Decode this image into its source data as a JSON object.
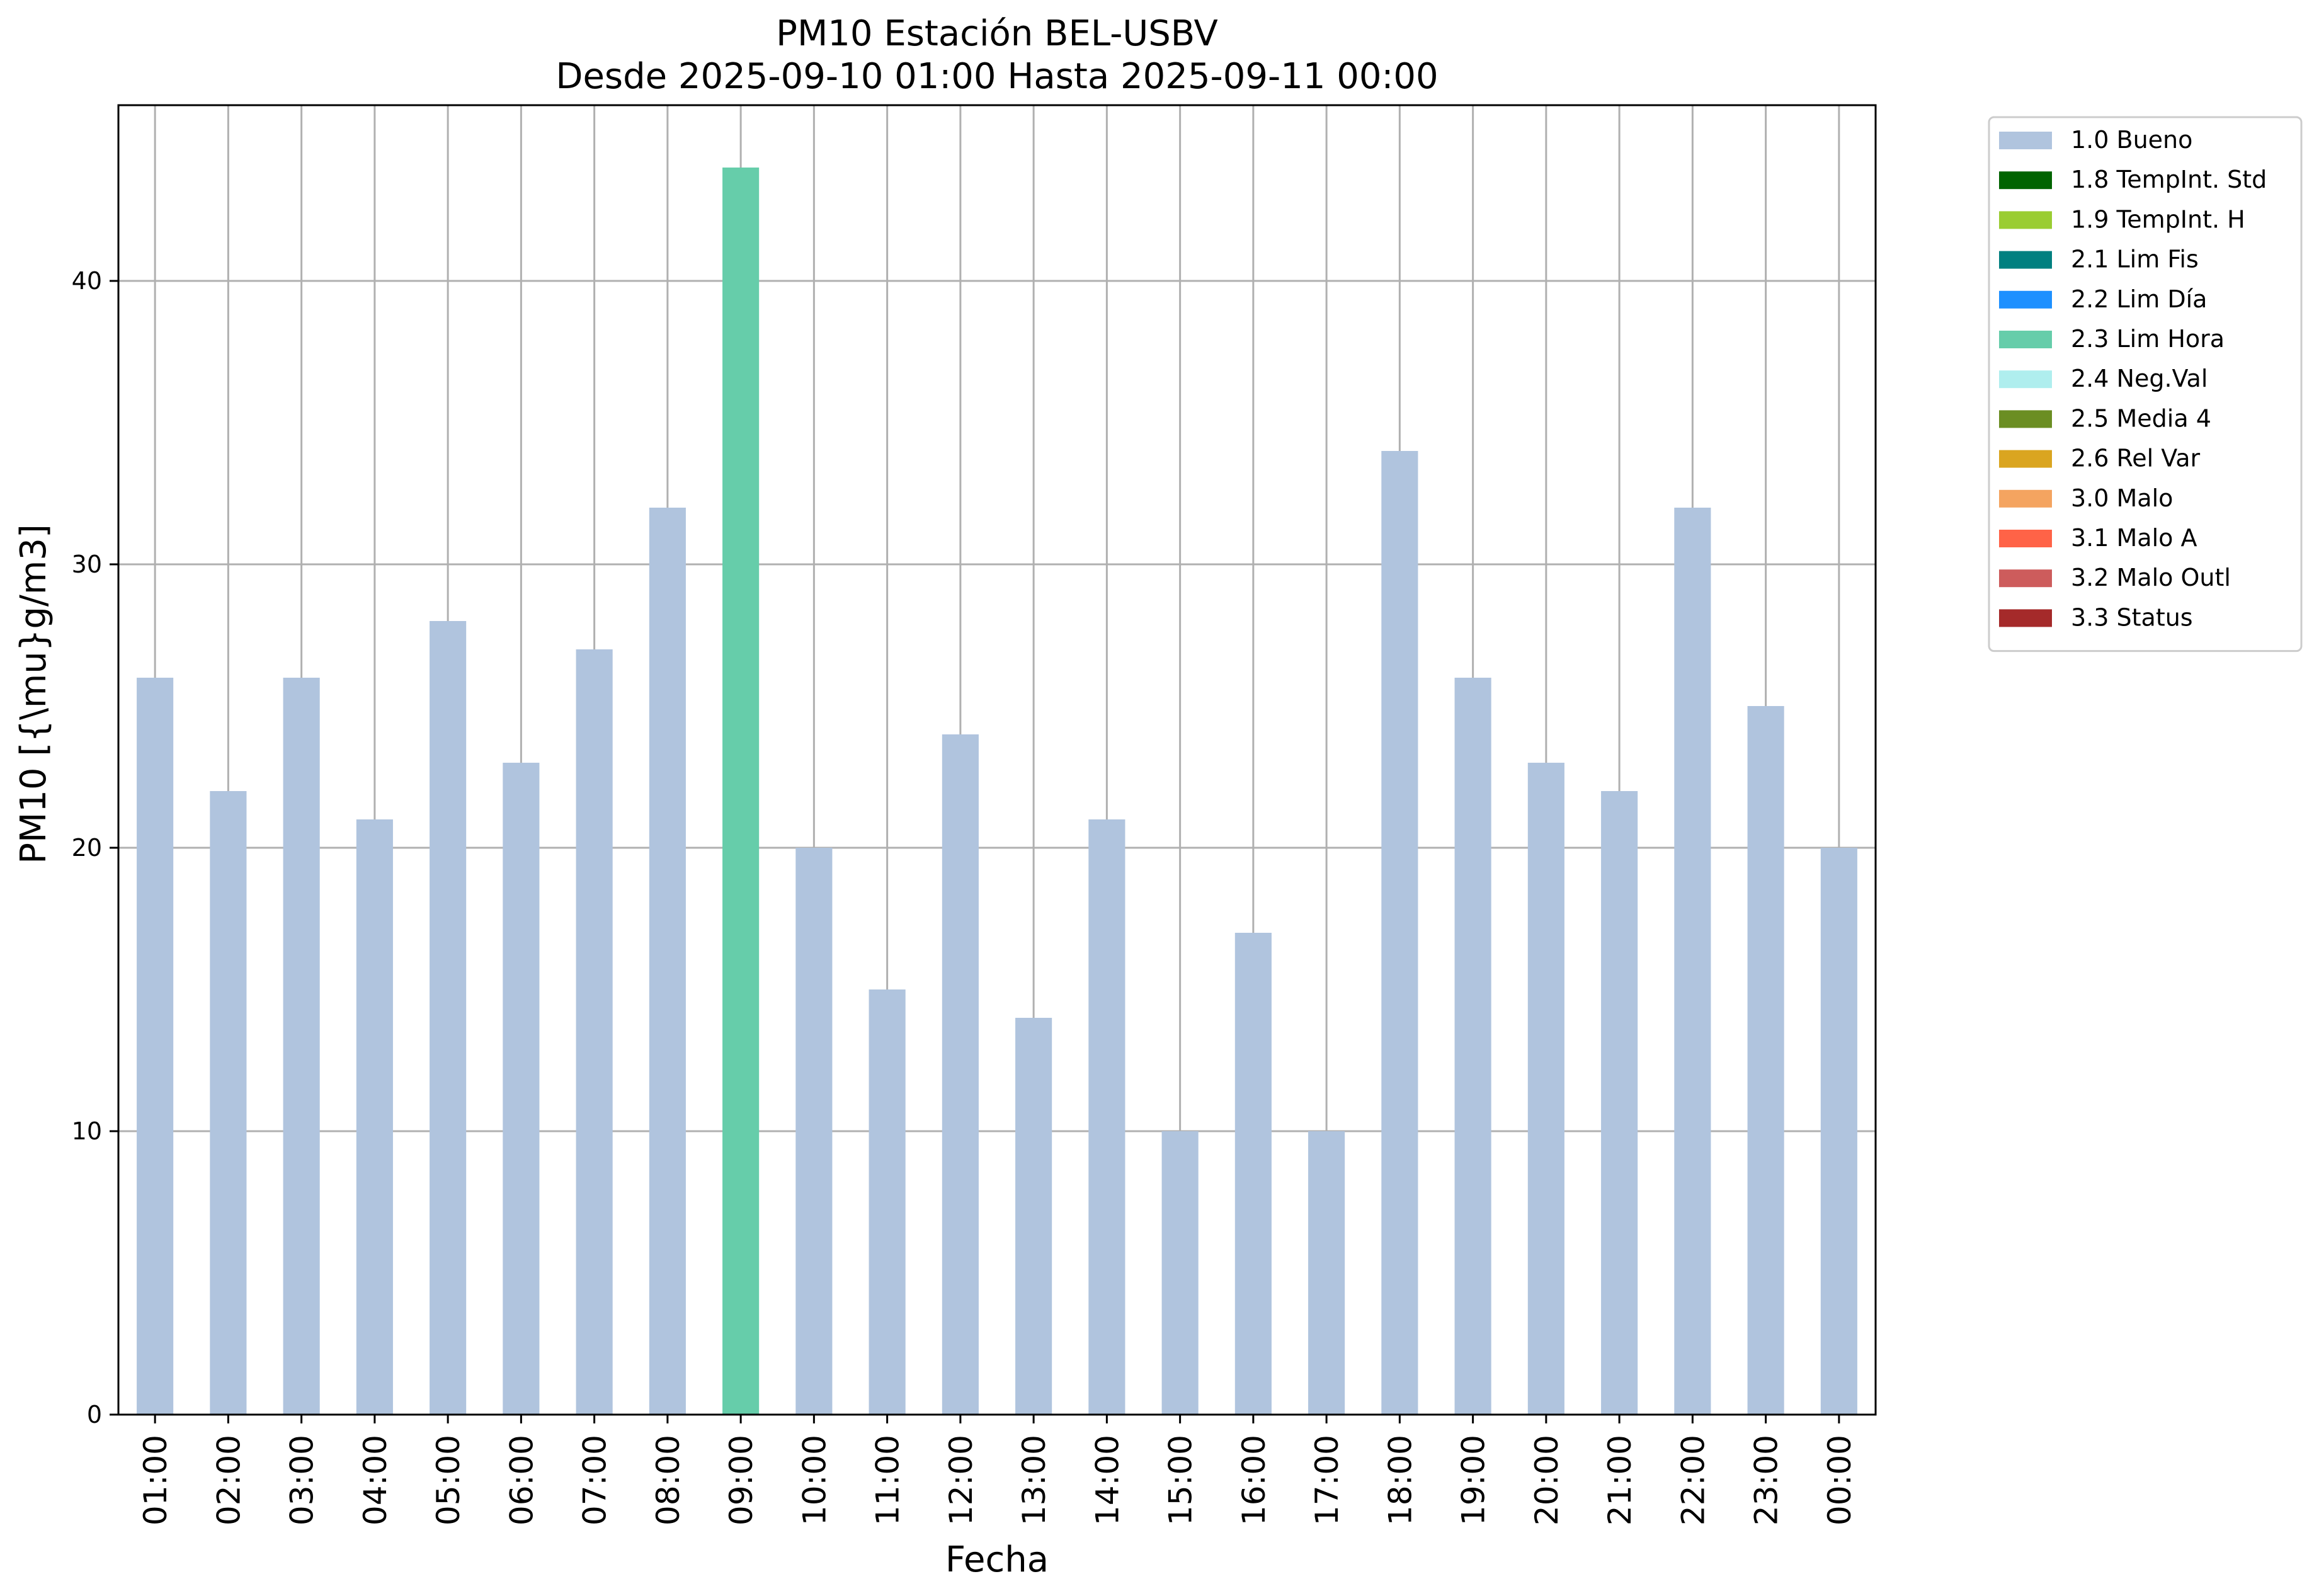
{
  "chart_data": {
    "type": "bar",
    "title": "PM10 Estación BEL-USBV",
    "subtitle": "Desde 2025-09-10 01:00 Hasta 2025-09-11 00:00",
    "xlabel": "Fecha",
    "ylabel": "PM10 [{\\mu}g/m3]",
    "ylim": [
      0,
      46.2
    ],
    "yticks": [
      0,
      10,
      20,
      30,
      40
    ],
    "grid": true,
    "legend_position": "outside-top-right",
    "categories": [
      "01:00",
      "02:00",
      "03:00",
      "04:00",
      "05:00",
      "06:00",
      "07:00",
      "08:00",
      "09:00",
      "10:00",
      "11:00",
      "12:00",
      "13:00",
      "14:00",
      "15:00",
      "16:00",
      "17:00",
      "18:00",
      "19:00",
      "20:00",
      "21:00",
      "22:00",
      "23:00",
      "00:00"
    ],
    "values": [
      26,
      22,
      26,
      21,
      28,
      23,
      27,
      32,
      44,
      20,
      15,
      24,
      14,
      21,
      10,
      17,
      10,
      34,
      26,
      23,
      22,
      32,
      25,
      20
    ],
    "flags": [
      "1.0 Bueno",
      "1.0 Bueno",
      "1.0 Bueno",
      "1.0 Bueno",
      "1.0 Bueno",
      "1.0 Bueno",
      "1.0 Bueno",
      "1.0 Bueno",
      "2.3 Lim Hora",
      "1.0 Bueno",
      "1.0 Bueno",
      "1.0 Bueno",
      "1.0 Bueno",
      "1.0 Bueno",
      "1.0 Bueno",
      "1.0 Bueno",
      "1.0 Bueno",
      "1.0 Bueno",
      "1.0 Bueno",
      "1.0 Bueno",
      "1.0 Bueno",
      "1.0 Bueno",
      "1.0 Bueno",
      "1.0 Bueno"
    ],
    "legend": [
      {
        "label": "1.0 Bueno",
        "color": "#b0c4de"
      },
      {
        "label": "1.8 TempInt. Std",
        "color": "#006400"
      },
      {
        "label": "1.9 TempInt. H",
        "color": "#9acd32"
      },
      {
        "label": "2.1 Lim Fis",
        "color": "#008080"
      },
      {
        "label": "2.2 Lim Día",
        "color": "#1e90ff"
      },
      {
        "label": "2.3 Lim Hora",
        "color": "#66cdaa"
      },
      {
        "label": "2.4 Neg.Val",
        "color": "#afeeee"
      },
      {
        "label": "2.5 Media 4",
        "color": "#6b8e23"
      },
      {
        "label": "2.6 Rel Var",
        "color": "#daa520"
      },
      {
        "label": "3.0 Malo",
        "color": "#f4a460"
      },
      {
        "label": "3.1 Malo A",
        "color": "#ff6347"
      },
      {
        "label": "3.2 Malo Outl",
        "color": "#cd5c5c"
      },
      {
        "label": "3.3 Status",
        "color": "#a52a2a"
      }
    ]
  }
}
